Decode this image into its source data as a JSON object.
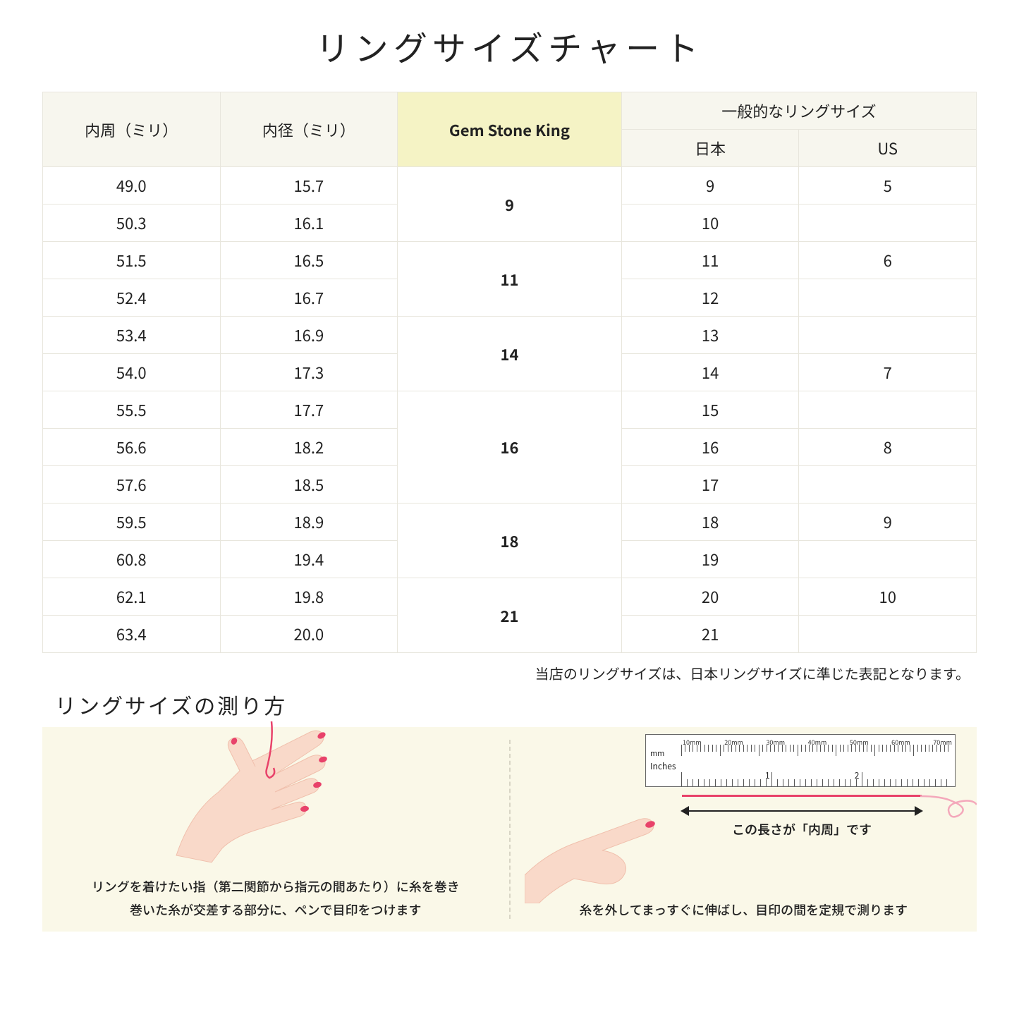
{
  "title": "リングサイズチャート",
  "table": {
    "header": {
      "col1": "内周（ミリ）",
      "col2": "内径（ミリ）",
      "col3": "Gem Stone King",
      "col4_group": "一般的なリングサイズ",
      "col4a": "日本",
      "col4b": "US"
    },
    "groups": [
      {
        "gsk": "9",
        "rows": [
          {
            "c": "49.0",
            "d": "15.7",
            "jp": "9",
            "us": "5"
          },
          {
            "c": "50.3",
            "d": "16.1",
            "jp": "10",
            "us": ""
          }
        ]
      },
      {
        "gsk": "11",
        "rows": [
          {
            "c": "51.5",
            "d": "16.5",
            "jp": "11",
            "us": "6"
          },
          {
            "c": "52.4",
            "d": "16.7",
            "jp": "12",
            "us": ""
          }
        ]
      },
      {
        "gsk": "14",
        "rows": [
          {
            "c": "53.4",
            "d": "16.9",
            "jp": "13",
            "us": ""
          },
          {
            "c": "54.0",
            "d": "17.3",
            "jp": "14",
            "us": "7"
          }
        ]
      },
      {
        "gsk": "16",
        "rows": [
          {
            "c": "55.5",
            "d": "17.7",
            "jp": "15",
            "us": ""
          },
          {
            "c": "56.6",
            "d": "18.2",
            "jp": "16",
            "us": "8"
          },
          {
            "c": "57.6",
            "d": "18.5",
            "jp": "17",
            "us": ""
          }
        ]
      },
      {
        "gsk": "18",
        "rows": [
          {
            "c": "59.5",
            "d": "18.9",
            "jp": "18",
            "us": "9"
          },
          {
            "c": "60.8",
            "d": "19.4",
            "jp": "19",
            "us": ""
          }
        ]
      },
      {
        "gsk": "21",
        "rows": [
          {
            "c": "62.1",
            "d": "19.8",
            "jp": "20",
            "us": "10"
          },
          {
            "c": "63.4",
            "d": "20.0",
            "jp": "21",
            "us": ""
          }
        ]
      }
    ]
  },
  "note": "当店のリングサイズは、日本リングサイズに準じた表記となります。",
  "measure": {
    "title": "リングサイズの測り方",
    "left_caption_l1": "リングを着けたい指（第二関節から指元の間あたり）に糸を巻き",
    "left_caption_l2": "巻いた糸が交差する部分に、ペンで目印をつけます",
    "right_caption": "糸を外してまっすぐに伸ばし、目印の間を定規で測ります",
    "arrow_caption": "この長さが「内周」です",
    "ruler": {
      "mm_unit": "mm",
      "inch_unit": "Inches",
      "mm_labels": [
        "10mm",
        "20mm",
        "30mm",
        "40mm",
        "50mm",
        "60mm",
        "70mm"
      ],
      "inch_labels": [
        "1",
        "2"
      ]
    }
  },
  "colors": {
    "header_bg": "#f7f6ee",
    "gsk_bg": "#f5f3c5",
    "border": "#e8e6dd",
    "panel_bg": "#faf8e8",
    "skin": "#f9d9c9",
    "skin_shadow": "#f0c0ad",
    "nail": "#e8426a",
    "string": "#e8426a"
  }
}
